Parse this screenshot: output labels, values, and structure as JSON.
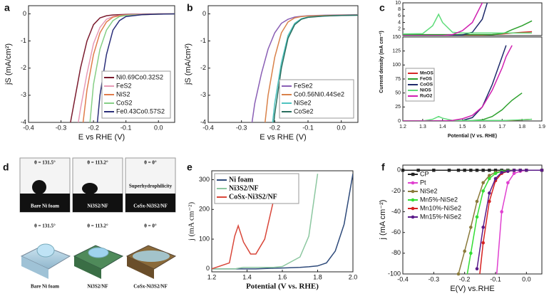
{
  "chart_data": [
    {
      "type": "line",
      "label": "a",
      "x_label": "E vs RHE (V)",
      "y_label": "jS (mA/cm²)",
      "x": [
        -0.28,
        -0.26,
        -0.24,
        -0.22,
        -0.2,
        -0.18,
        -0.16,
        -0.14,
        -0.12,
        -0.1,
        -0.05,
        0,
        0.05
      ],
      "xlim": [
        -0.4,
        0.05
      ],
      "xticks": [
        -0.4,
        -0.3,
        -0.2,
        -0.1,
        {
          "value": 0,
          "label": "0.0"
        }
      ],
      "ylim": [
        -4,
        0.3
      ],
      "yticks": [
        -4,
        -3,
        -2,
        -1,
        0
      ],
      "legend": "lower right",
      "series": [
        {
          "name": "Ni0.69Co0.32S2",
          "color": "#7b1b2e",
          "values": [
            -4.6,
            -3.3,
            -2.0,
            -1.0,
            -0.4,
            -0.15,
            -0.07,
            -0.04,
            -0.03,
            -0.02,
            -0.01,
            0,
            0
          ]
        },
        {
          "name": "FeS2",
          "color": "#e79ab6",
          "values": [
            null,
            -5.0,
            -3.5,
            -2.2,
            -1.1,
            -0.5,
            -0.2,
            -0.1,
            -0.06,
            -0.04,
            -0.02,
            -0.01,
            0
          ]
        },
        {
          "name": "NiS2",
          "color": "#e07b4a",
          "values": [
            null,
            null,
            -4.8,
            -2.8,
            -1.5,
            -0.7,
            -0.3,
            -0.12,
            -0.07,
            -0.05,
            -0.03,
            -0.01,
            0
          ]
        },
        {
          "name": "CoS2",
          "color": "#86cf86",
          "values": [
            null,
            null,
            null,
            -5.2,
            -2.6,
            -1.3,
            -0.6,
            -0.25,
            -0.1,
            -0.06,
            -0.03,
            -0.01,
            0
          ]
        },
        {
          "name": "Fe0.43Co0.57S2",
          "color": "#2b2f7a",
          "values": [
            null,
            null,
            null,
            null,
            -5.5,
            -3.0,
            -1.5,
            -0.6,
            -0.25,
            -0.1,
            -0.03,
            -0.01,
            0
          ]
        }
      ]
    },
    {
      "type": "line",
      "label": "b",
      "x_label": "E vs RHE (V)",
      "y_label": "jS (mA/cm²)",
      "x": [
        -0.28,
        -0.26,
        -0.24,
        -0.22,
        -0.2,
        -0.18,
        -0.16,
        -0.14,
        -0.12,
        -0.1,
        -0.05,
        0,
        0.05
      ],
      "xlim": [
        -0.4,
        0.05
      ],
      "xticks": [
        -0.4,
        -0.3,
        -0.2,
        -0.1,
        {
          "value": 0,
          "label": "0.0"
        }
      ],
      "ylim": [
        -4,
        0.3
      ],
      "yticks": [
        -4,
        -3,
        -2,
        -1,
        0
      ],
      "legend": "lower right",
      "series": [
        {
          "name": "FeSe2",
          "color": "#8a5fb5",
          "values": [
            -5.0,
            -3.3,
            -2.2,
            -1.3,
            -0.7,
            -0.35,
            -0.2,
            -0.12,
            -0.09,
            -0.07,
            -0.05,
            -0.04,
            -0.03
          ]
        },
        {
          "name": "Co0.56Ni0.44Se2",
          "color": "#d9824a",
          "values": [
            null,
            null,
            -5.2,
            -3.0,
            -1.6,
            -0.7,
            -0.3,
            -0.15,
            -0.1,
            -0.08,
            -0.06,
            -0.05,
            -0.04
          ]
        },
        {
          "name": "NiSe2",
          "color": "#4fc3c0",
          "values": [
            null,
            null,
            null,
            -5.5,
            -3.3,
            -1.8,
            -0.8,
            -0.35,
            -0.18,
            -0.12,
            -0.08,
            -0.06,
            -0.05
          ]
        },
        {
          "name": "CoSe2",
          "color": "#2a6e5e",
          "values": [
            null,
            null,
            null,
            -6.0,
            -3.7,
            -2.0,
            -0.9,
            -0.4,
            -0.2,
            -0.13,
            -0.08,
            -0.06,
            -0.05
          ]
        }
      ]
    },
    {
      "type": "line",
      "label": "c",
      "x": [
        1.2,
        1.3,
        1.35,
        1.38,
        1.4,
        1.45,
        1.5,
        1.55,
        1.6,
        1.65,
        1.7,
        1.72,
        1.75,
        1.8,
        1.85
      ],
      "xlim": [
        1.2,
        1.9
      ],
      "ylim": [
        0,
        10
      ],
      "yticks": [
        2,
        4,
        6,
        8,
        10
      ],
      "series": [
        {
          "color": "#d62728",
          "values": [
            0.2,
            0.2,
            0.2,
            0.2,
            0.2,
            0.2,
            0.2,
            0.2,
            0.2,
            0.3,
            0.5,
            0.6,
            0.8,
            1.0,
            1.2
          ]
        },
        {
          "color": "#2ca02c",
          "values": [
            0.3,
            0.3,
            0.3,
            0.3,
            0.3,
            0.3,
            0.3,
            0.3,
            0.3,
            0.3,
            0.6,
            1.0,
            1.8,
            3.0,
            4.5
          ]
        },
        {
          "color": "#1f2a6b",
          "values": [
            0,
            0,
            0,
            0,
            0,
            0,
            0.2,
            1,
            5,
            15,
            null,
            null,
            null,
            null,
            null
          ]
        },
        {
          "color": "#5fdc7a",
          "values": [
            0.5,
            0.6,
            3,
            6.5,
            4,
            1,
            0.8,
            0.8,
            0.8,
            0.8,
            0.8,
            0.8,
            0.8,
            0.8,
            0.8
          ]
        },
        {
          "color": "#d020b0",
          "values": [
            0,
            0,
            0,
            0,
            0,
            0.3,
            1.5,
            4,
            10,
            20,
            null,
            null,
            null,
            null,
            null
          ]
        }
      ]
    },
    {
      "type": "line",
      "x_label": "Potential (V vs. RHE)",
      "y_label": "Current density (mA cm⁻²)",
      "x": [
        1.2,
        1.3,
        1.35,
        1.38,
        1.4,
        1.45,
        1.5,
        1.55,
        1.6,
        1.65,
        1.7,
        1.72,
        1.75,
        1.8,
        1.85
      ],
      "xlim": [
        1.2,
        1.9
      ],
      "xticks": [
        1.2,
        1.3,
        1.4,
        1.5,
        1.6,
        1.7,
        1.8,
        1.9
      ],
      "ylim": [
        0,
        150
      ],
      "yticks": [
        0,
        25,
        50,
        75,
        100,
        125,
        150
      ],
      "legend": "center left",
      "series": [
        {
          "name": "MnOS",
          "color": "#d62728",
          "values": [
            0,
            0,
            0,
            0,
            0,
            0,
            0,
            0,
            0,
            0,
            0.5,
            0.8,
            1,
            2,
            3
          ]
        },
        {
          "name": "FeOS",
          "color": "#2ca02c",
          "values": [
            0,
            0,
            0,
            0,
            0,
            0,
            0.5,
            1,
            2,
            8,
            20,
            27,
            37,
            50,
            null
          ]
        },
        {
          "name": "CoOS",
          "color": "#1f2a6b",
          "values": [
            0,
            0,
            0,
            0,
            0,
            0,
            1,
            6,
            25,
            65,
            115,
            135,
            null,
            null,
            null
          ]
        },
        {
          "name": "NiOS",
          "color": "#5fdc7a",
          "values": [
            0,
            0,
            3,
            8,
            5,
            1,
            1,
            1,
            1,
            1,
            1,
            1,
            1.5,
            2,
            3
          ]
        },
        {
          "name": "RuO2",
          "color": "#d020b0",
          "values": [
            0,
            0,
            0,
            0,
            0,
            1,
            4,
            10,
            25,
            55,
            95,
            115,
            135,
            null,
            null
          ]
        }
      ]
    },
    {
      "type": "line",
      "label": "e",
      "x_label": "Potential (V vs. RHE)",
      "y_label": "j (mA cm⁻²)",
      "x": [
        1.2,
        1.3,
        1.33,
        1.35,
        1.38,
        1.42,
        1.45,
        1.5,
        1.55,
        1.6,
        1.7,
        1.75,
        1.8,
        1.85,
        1.9,
        1.95,
        2.0
      ],
      "xlim": [
        1.2,
        2.0
      ],
      "xticks": [
        1.2,
        1.4,
        1.6,
        1.8,
        {
          "value": 2,
          "label": "2.0"
        }
      ],
      "ylim": [
        -10,
        330
      ],
      "yticks": [
        0,
        100,
        200,
        300
      ],
      "legend": "upper left",
      "series": [
        {
          "name": "Ni foam",
          "color": "#2e4a7a",
          "values": [
            0,
            0,
            0,
            0,
            0,
            0,
            0,
            1,
            2,
            3,
            5,
            7,
            10,
            20,
            60,
            150,
            320
          ]
        },
        {
          "name": "Ni3S2/NF",
          "color": "#8cc7a0",
          "values": [
            0,
            0,
            0,
            2,
            5,
            5,
            5,
            5,
            5,
            8,
            40,
            110,
            320,
            null,
            null,
            null,
            null
          ]
        },
        {
          "name": "CoSx-Ni3S2/NF",
          "color": "#d9473a",
          "values": [
            0,
            20,
            110,
            145,
            90,
            50,
            50,
            100,
            230,
            320,
            null,
            null,
            null,
            null,
            null,
            null,
            null
          ]
        }
      ]
    },
    {
      "type": "line",
      "label": "f",
      "x_label": "E(V) vs.RHE",
      "y_label": "j (mA cm⁻²)",
      "x": [
        -0.4,
        -0.35,
        -0.3,
        -0.25,
        -0.22,
        -0.2,
        -0.18,
        -0.16,
        -0.14,
        -0.12,
        -0.1,
        -0.08,
        -0.06,
        -0.04,
        -0.02,
        0,
        0.05
      ],
      "xlim": [
        -0.4,
        0.05
      ],
      "xticks": [
        -0.4,
        -0.3,
        -0.2,
        -0.1,
        {
          "value": 0,
          "label": "0.0"
        }
      ],
      "ylim": [
        -100,
        5
      ],
      "yticks": [
        -100,
        -80,
        -60,
        -40,
        -20,
        0
      ],
      "legend": "upper left",
      "series": [
        {
          "name": "CP",
          "color": "#222222",
          "marker": "square",
          "values": [
            0,
            0,
            0,
            0,
            0,
            0,
            0,
            0,
            0,
            0,
            0,
            0,
            0,
            0,
            0,
            0,
            0
          ]
        },
        {
          "name": "Pt",
          "color": "#e040d0",
          "marker": "circle",
          "values": [
            null,
            null,
            null,
            null,
            null,
            null,
            null,
            null,
            null,
            null,
            -115,
            -40,
            -12,
            -3,
            -1,
            0,
            0
          ]
        },
        {
          "name": "NiSe2",
          "color": "#8a7a3a",
          "marker": "circle",
          "values": [
            null,
            null,
            null,
            null,
            -100,
            -78,
            -55,
            -30,
            -12,
            -5,
            -2,
            -1,
            -0.5,
            0,
            0,
            0,
            0
          ]
        },
        {
          "name": "Mn5%-NiSe2",
          "color": "#33dd33",
          "marker": "circle",
          "values": [
            null,
            null,
            null,
            null,
            null,
            -115,
            -80,
            -45,
            -20,
            -8,
            -3,
            -1,
            -0.5,
            0,
            0,
            0,
            0
          ]
        },
        {
          "name": "Mn10%-NiSe2",
          "color": "#d62020",
          "marker": "circle",
          "values": [
            null,
            null,
            null,
            null,
            null,
            null,
            null,
            -125,
            -70,
            -30,
            -10,
            -3,
            -1,
            0,
            0,
            0,
            0
          ]
        },
        {
          "name": "Mn15%-NiSe2",
          "color": "#5a1a8a",
          "marker": "circle",
          "values": [
            null,
            null,
            null,
            null,
            null,
            null,
            null,
            -95,
            -55,
            -22,
            -8,
            -2,
            -1,
            0,
            0,
            0,
            0
          ]
        }
      ]
    }
  ],
  "panel_d": {
    "label": "d",
    "top": [
      {
        "angle": "θ = 131.5°",
        "name": "Bare Ni foam"
      },
      {
        "angle": "θ = 113.2°",
        "name": "Ni3S2/NF"
      },
      {
        "angle": "θ = 0°",
        "note": "Superhydrophilicity",
        "name": "CoSx-Ni3S2/NF"
      }
    ],
    "bottom": [
      {
        "angle": "θ = 131.5°",
        "name": "Bare Ni foam"
      },
      {
        "angle": "θ = 113.2°",
        "name": "Ni3S2/NF"
      },
      {
        "angle": "θ = 0°",
        "name": "CoSx-Ni3S2/NF"
      }
    ]
  }
}
